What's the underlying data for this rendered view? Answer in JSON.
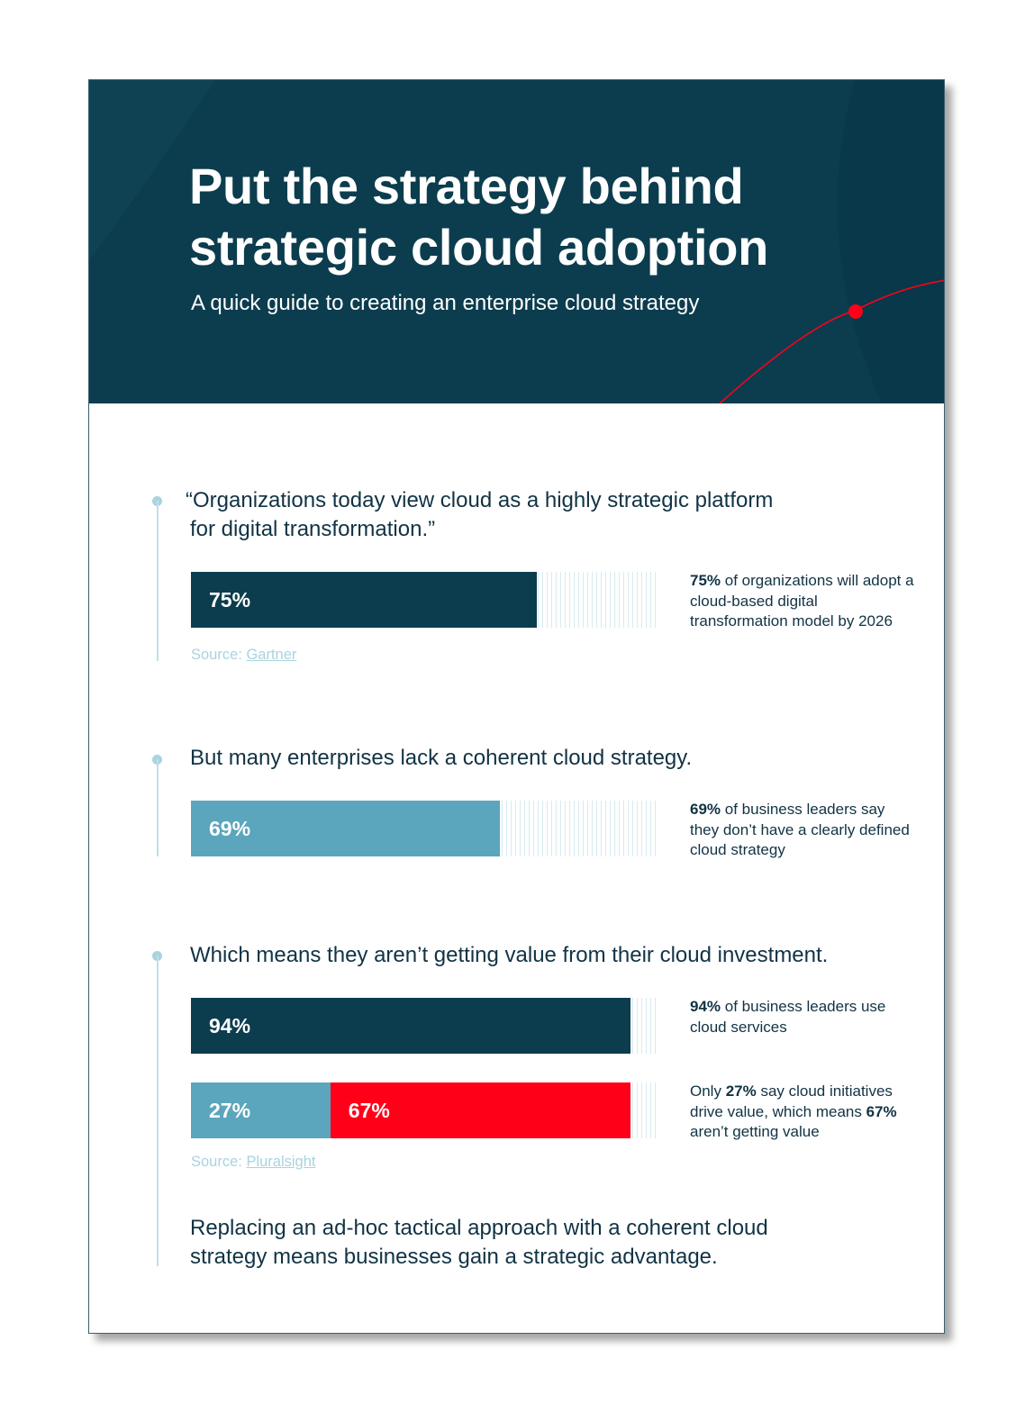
{
  "header": {
    "title_line1": "Put the strategy behind",
    "title_line2": "strategic cloud adoption",
    "subtitle": "A quick guide to creating an enterprise cloud strategy"
  },
  "colors": {
    "header_bg": "#0c3d4e",
    "dark_bar": "#0c3d4e",
    "light_bar": "#5ba6bd",
    "red_bar": "#ff0019",
    "accent_red": "#ff0019"
  },
  "section1": {
    "quote_line1": "“Organizations today view cloud as a highly strategic platform",
    "quote_line2": "for digital transformation.”",
    "bar": {
      "value": 75,
      "label": "75%"
    },
    "note_bold": "75%",
    "note_rest": " of organizations will adopt a cloud-based digital transformation model by 2026",
    "source_label": "Source: ",
    "source_link": "Gartner"
  },
  "section2": {
    "heading": "But many enterprises lack a coherent cloud strategy.",
    "bar": {
      "value": 69,
      "label": "69%"
    },
    "note_bold": "69%",
    "note_rest": " of business leaders say they don’t have a clearly defined cloud strategy"
  },
  "section3": {
    "heading": "Which means they aren’t getting value from their cloud investment.",
    "bar1": {
      "value": 94,
      "label": "94%"
    },
    "note1_bold": "94%",
    "note1_rest": " of business leaders use cloud services",
    "bar2": {
      "value_a": 27,
      "label_a": "27%",
      "value_b": 67,
      "label_b": "67%"
    },
    "note2_a": "Only ",
    "note2_b": "27%",
    "note2_c": " say cloud initiatives drive value, which means ",
    "note2_d": "67%",
    "note2_e": " aren’t getting value",
    "source_label": "Source: ",
    "source_link": "Pluralsight",
    "closing_line1": "Replacing an ad-hoc tactical approach with a coherent cloud",
    "closing_line2": "strategy means businesses gain a strategic advantage."
  }
}
